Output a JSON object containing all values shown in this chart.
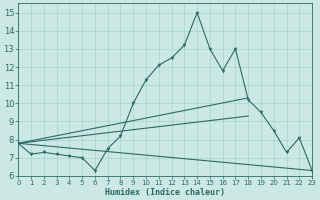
{
  "title": "",
  "xlabel": "Humidex (Indice chaleur)",
  "ylabel": "",
  "bg_color": "#cce8e4",
  "grid_color": "#a8d4cf",
  "line_color": "#2a6b65",
  "marker_color": "#2a6b65",
  "xlim": [
    0,
    23
  ],
  "ylim": [
    6,
    15.5
  ],
  "yticks": [
    6,
    7,
    8,
    9,
    10,
    11,
    12,
    13,
    14,
    15
  ],
  "xticks": [
    0,
    1,
    2,
    3,
    4,
    5,
    6,
    7,
    8,
    9,
    10,
    11,
    12,
    13,
    14,
    15,
    16,
    17,
    18,
    19,
    20,
    21,
    22,
    23
  ],
  "main_series": {
    "x": [
      0,
      1,
      2,
      3,
      4,
      5,
      6,
      7,
      8,
      9,
      10,
      11,
      12,
      13,
      14,
      15,
      16,
      17,
      18,
      19,
      20,
      21,
      22,
      23
    ],
    "y": [
      7.8,
      7.2,
      7.3,
      7.2,
      7.1,
      7.0,
      6.3,
      7.5,
      8.2,
      10.0,
      11.3,
      12.1,
      12.5,
      13.2,
      15.0,
      13.0,
      11.8,
      13.0,
      10.2,
      9.5,
      8.5,
      7.3,
      8.1,
      6.3
    ]
  },
  "straight_lines": [
    {
      "x": [
        0,
        18
      ],
      "y": [
        7.8,
        10.3
      ]
    },
    {
      "x": [
        0,
        18
      ],
      "y": [
        7.8,
        9.3
      ]
    },
    {
      "x": [
        0,
        23
      ],
      "y": [
        7.8,
        6.3
      ]
    }
  ],
  "xlabel_fontsize": 6.0,
  "tick_fontsize_x": 5.0,
  "tick_fontsize_y": 6.0
}
